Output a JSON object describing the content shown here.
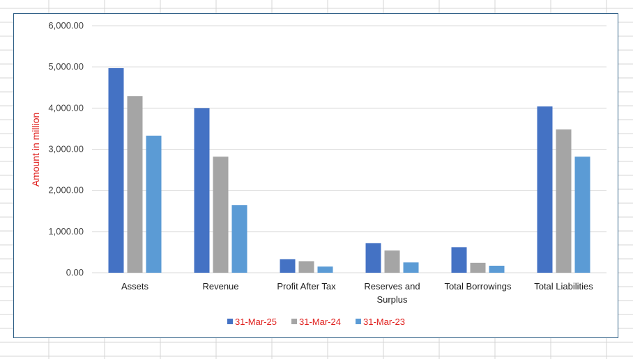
{
  "chart_data": {
    "type": "bar",
    "title": "",
    "xlabel": "",
    "ylabel": "Amount in million",
    "ylim": [
      0,
      6000
    ],
    "ytick_step": 1000,
    "ytick_labels": [
      "0.00",
      "1,000.00",
      "2,000.00",
      "3,000.00",
      "4,000.00",
      "5,000.00",
      "6,000.00"
    ],
    "grid": true,
    "legend_position": "bottom",
    "categories": [
      [
        "Assets"
      ],
      [
        "Revenue"
      ],
      [
        "Profit After Tax"
      ],
      [
        "Reserves and",
        "Surplus"
      ],
      [
        "Total Borrowings"
      ],
      [
        "Total Liabilities"
      ]
    ],
    "series": [
      {
        "name": "31-Mar-25",
        "color": "#4472c4",
        "values": [
          4970,
          4000,
          330,
          720,
          620,
          4040
        ]
      },
      {
        "name": "31-Mar-24",
        "color": "#a5a5a5",
        "values": [
          4290,
          2820,
          280,
          540,
          240,
          3480
        ]
      },
      {
        "name": "31-Mar-23",
        "color": "#5b9bd5",
        "values": [
          3330,
          1640,
          150,
          250,
          170,
          2820
        ]
      }
    ]
  }
}
